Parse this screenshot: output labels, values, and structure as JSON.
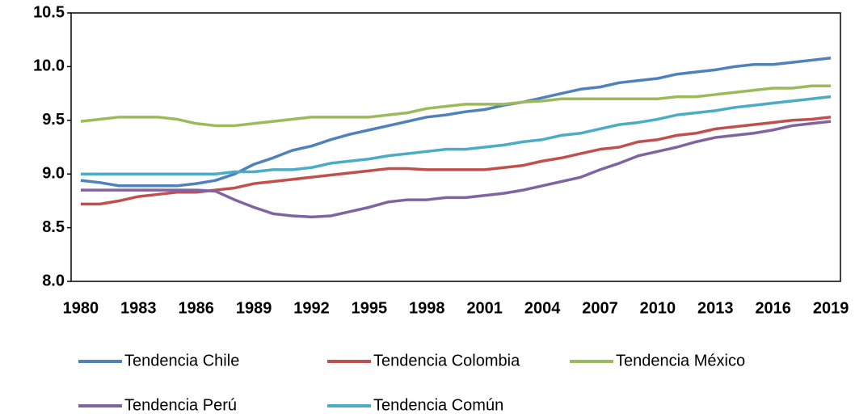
{
  "chart_data": {
    "type": "line",
    "categories": [
      "1980",
      null,
      null,
      "1983",
      null,
      null,
      "1986",
      null,
      null,
      "1989",
      null,
      null,
      "1992",
      null,
      null,
      "1995",
      null,
      null,
      "1998",
      null,
      null,
      "2001",
      null,
      null,
      "2004",
      null,
      null,
      "2007",
      null,
      null,
      "2010",
      null,
      null,
      "2013",
      null,
      null,
      "2016",
      null,
      null,
      "2019"
    ],
    "series": [
      {
        "name": "Tendencia Chile",
        "color": "#4f81bd",
        "values": [
          8.94,
          8.92,
          8.89,
          8.89,
          8.89,
          8.89,
          8.91,
          8.94,
          9.0,
          9.09,
          9.15,
          9.22,
          9.26,
          9.32,
          9.37,
          9.41,
          9.45,
          9.49,
          9.53,
          9.55,
          9.58,
          9.6,
          9.64,
          9.67,
          9.71,
          9.75,
          9.79,
          9.81,
          9.85,
          9.87,
          9.89,
          9.93,
          9.95,
          9.97,
          10.0,
          10.02,
          10.02,
          10.04,
          10.06,
          10.08
        ]
      },
      {
        "name": "Tendencia Colombia",
        "color": "#c0504d",
        "values": [
          8.72,
          8.72,
          8.75,
          8.79,
          8.81,
          8.83,
          8.83,
          8.85,
          8.87,
          8.91,
          8.93,
          8.95,
          8.97,
          8.99,
          9.01,
          9.03,
          9.05,
          9.05,
          9.04,
          9.04,
          9.04,
          9.04,
          9.06,
          9.08,
          9.12,
          9.15,
          9.19,
          9.23,
          9.25,
          9.3,
          9.32,
          9.36,
          9.38,
          9.42,
          9.44,
          9.46,
          9.48,
          9.5,
          9.51,
          9.53
        ]
      },
      {
        "name": "Tendencia México",
        "color": "#9bbb59",
        "values": [
          9.49,
          9.51,
          9.53,
          9.53,
          9.53,
          9.51,
          9.47,
          9.45,
          9.45,
          9.47,
          9.49,
          9.51,
          9.53,
          9.53,
          9.53,
          9.53,
          9.55,
          9.57,
          9.61,
          9.63,
          9.65,
          9.65,
          9.65,
          9.67,
          9.68,
          9.7,
          9.7,
          9.7,
          9.7,
          9.7,
          9.7,
          9.72,
          9.72,
          9.74,
          9.76,
          9.78,
          9.8,
          9.8,
          9.82,
          9.82
        ]
      },
      {
        "name": "Tendencia Perú",
        "color": "#8064a2",
        "values": [
          8.85,
          8.85,
          8.85,
          8.85,
          8.85,
          8.85,
          8.85,
          8.84,
          8.76,
          8.69,
          8.63,
          8.61,
          8.6,
          8.61,
          8.65,
          8.69,
          8.74,
          8.76,
          8.76,
          8.78,
          8.78,
          8.8,
          8.82,
          8.85,
          8.89,
          8.93,
          8.97,
          9.04,
          9.1,
          9.17,
          9.21,
          9.25,
          9.3,
          9.34,
          9.36,
          9.38,
          9.41,
          9.45,
          9.47,
          9.49
        ]
      },
      {
        "name": "Tendencia Común",
        "color": "#4bacc6",
        "values": [
          9.0,
          9.0,
          9.0,
          9.0,
          9.0,
          9.0,
          9.0,
          9.0,
          9.02,
          9.02,
          9.04,
          9.04,
          9.06,
          9.1,
          9.12,
          9.14,
          9.17,
          9.19,
          9.21,
          9.23,
          9.23,
          9.25,
          9.27,
          9.3,
          9.32,
          9.36,
          9.38,
          9.42,
          9.46,
          9.48,
          9.51,
          9.55,
          9.57,
          9.59,
          9.62,
          9.64,
          9.66,
          9.68,
          9.7,
          9.72
        ]
      }
    ],
    "ylim": [
      8.0,
      10.5
    ],
    "yticks": [
      {
        "value": 8.0,
        "label": "8.0"
      },
      8.5,
      {
        "value": 9.0,
        "label": "9.0"
      },
      9.5,
      {
        "value": 10.0,
        "label": "10.0"
      },
      10.5
    ],
    "grid": false
  }
}
